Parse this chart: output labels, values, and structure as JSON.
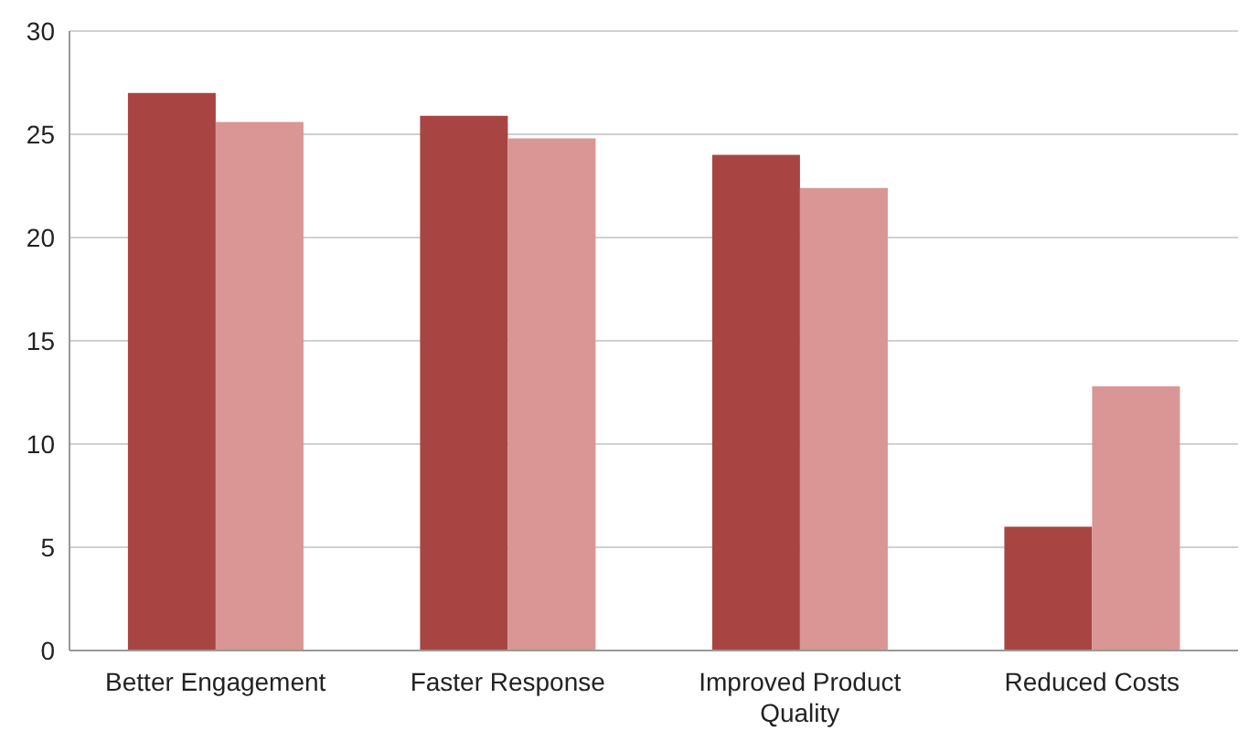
{
  "chart_data": {
    "type": "bar",
    "categories": [
      "Better Engagement",
      "Faster Response",
      "Improved Product Quality",
      "Reduced Costs"
    ],
    "series": [
      {
        "color": "#a84543",
        "values": [
          27.0,
          25.9,
          24.0,
          6.0
        ]
      },
      {
        "color": "#d99694",
        "values": [
          25.6,
          24.8,
          22.4,
          12.8
        ]
      }
    ],
    "ylim": [
      0,
      30
    ],
    "yticks": [
      0,
      5,
      10,
      15,
      20,
      25,
      30
    ],
    "grid": "y",
    "legend": false
  }
}
